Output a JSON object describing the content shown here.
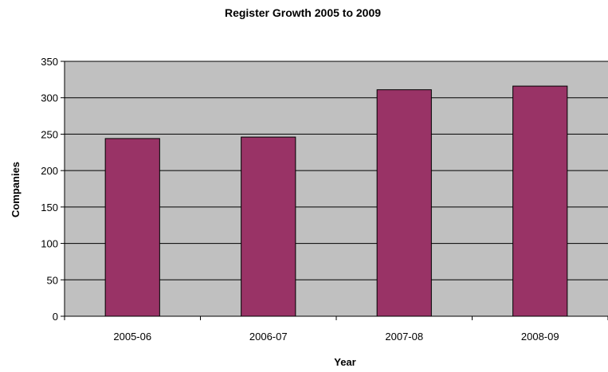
{
  "chart_data": {
    "type": "bar",
    "title": "Register Growth 2005 to 2009",
    "xlabel": "Year",
    "ylabel": "Companies",
    "categories": [
      "2005-06",
      "2006-07",
      "2007-08",
      "2008-09"
    ],
    "values": [
      244,
      246,
      311,
      316
    ],
    "ylim": [
      0,
      350
    ],
    "yticks": [
      "0",
      "50",
      "100",
      "150",
      "200",
      "250",
      "300",
      "350"
    ],
    "grid": true,
    "legend": "none",
    "colors": {
      "bar": "#993366",
      "plot_background": "#c0c0c0",
      "gridline": "#000000"
    }
  }
}
